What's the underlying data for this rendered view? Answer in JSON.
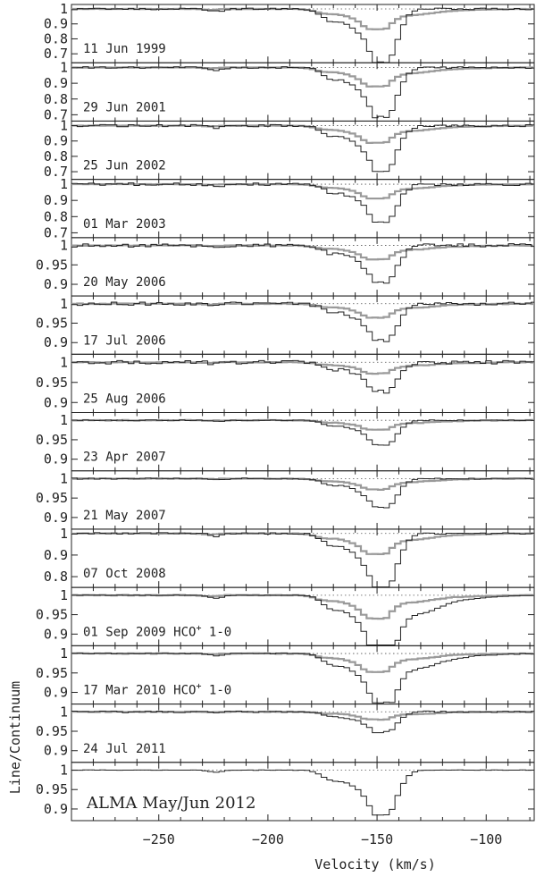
{
  "chart_data": {
    "type": "line",
    "xlabel": "Velocity (km/s)",
    "ylabel": "Line/Continuum",
    "xlim": [
      -290,
      -78
    ],
    "x_ticks": [
      -250,
      -200,
      -150,
      -100
    ],
    "panels": [
      {
        "label": "11 Jun 1999",
        "ylim": [
          0.64,
          1.03
        ],
        "yticks": [
          "1",
          "0.9",
          "0.8",
          "0.7"
        ],
        "ytick_values": [
          1.0,
          0.9,
          0.8,
          0.7
        ],
        "depth": 0.34,
        "noise": 0.004,
        "comparison": true,
        "hco": false
      },
      {
        "label": "29 Jun 2001",
        "ylim": [
          0.66,
          1.03
        ],
        "yticks": [
          "1",
          "0.9",
          "0.8",
          "0.7"
        ],
        "ytick_values": [
          1.0,
          0.9,
          0.8,
          0.7
        ],
        "depth": 0.3,
        "noise": 0.004,
        "comparison": true,
        "hco": false
      },
      {
        "label": "25 Jun 2002",
        "ylim": [
          0.65,
          1.03
        ],
        "yticks": [
          "1",
          "0.9",
          "0.8",
          "0.7"
        ],
        "ytick_values": [
          1.0,
          0.9,
          0.8,
          0.7
        ],
        "depth": 0.28,
        "noise": 0.005,
        "comparison": true,
        "hco": false
      },
      {
        "label": "01 Mar 2003",
        "ylim": [
          0.67,
          1.03
        ],
        "yticks": [
          "1",
          "0.9",
          "0.8",
          "0.7"
        ],
        "ytick_values": [
          1.0,
          0.9,
          0.8,
          0.7
        ],
        "depth": 0.22,
        "noise": 0.006,
        "comparison": true,
        "hco": false
      },
      {
        "label": "20 May 2006",
        "ylim": [
          0.87,
          1.02
        ],
        "yticks": [
          "1",
          "0.95",
          "0.9"
        ],
        "ytick_values": [
          1.0,
          0.95,
          0.9
        ],
        "depth": 0.09,
        "noise": 0.008,
        "comparison": true,
        "hco": false
      },
      {
        "label": "17 Jul 2006",
        "ylim": [
          0.87,
          1.02
        ],
        "yticks": [
          "1",
          "0.95",
          "0.9"
        ],
        "ytick_values": [
          1.0,
          0.95,
          0.9
        ],
        "depth": 0.09,
        "noise": 0.008,
        "comparison": true,
        "hco": false
      },
      {
        "label": "25 Aug 2006",
        "ylim": [
          0.875,
          1.02
        ],
        "yticks": [
          "1",
          "0.95",
          "0.9"
        ],
        "ytick_values": [
          1.0,
          0.95,
          0.9
        ],
        "depth": 0.07,
        "noise": 0.008,
        "comparison": true,
        "hco": false
      },
      {
        "label": "23 Apr 2007",
        "ylim": [
          0.87,
          1.02
        ],
        "yticks": [
          "1",
          "0.95",
          "0.9"
        ],
        "ytick_values": [
          1.0,
          0.95,
          0.9
        ],
        "depth": 0.06,
        "noise": 0.002,
        "comparison": true,
        "hco": false
      },
      {
        "label": "21 May 2007",
        "ylim": [
          0.87,
          1.02
        ],
        "yticks": [
          "1",
          "0.95",
          "0.9"
        ],
        "ytick_values": [
          1.0,
          0.95,
          0.9
        ],
        "depth": 0.07,
        "noise": 0.003,
        "comparison": true,
        "hco": false
      },
      {
        "label": "07 Oct 2008",
        "ylim": [
          0.75,
          1.02
        ],
        "yticks": [
          "1",
          "0.9",
          "0.8"
        ],
        "ytick_values": [
          1.0,
          0.9,
          0.8
        ],
        "depth": 0.24,
        "noise": 0.004,
        "comparison": true,
        "hco": false
      },
      {
        "label": "01 Sep 2009 HCO",
        "label_sup": "+",
        "label_tail": " 1-0",
        "ylim": [
          0.87,
          1.02
        ],
        "yticks": [
          "1",
          "0.95",
          "0.9"
        ],
        "ytick_values": [
          1.0,
          0.95,
          0.9
        ],
        "depth": 0.15,
        "noise": 0.001,
        "comparison": true,
        "hco": true
      },
      {
        "label": "17 Mar 2010 HCO",
        "label_sup": "+",
        "label_tail": " 1-0",
        "ylim": [
          0.87,
          1.02
        ],
        "yticks": [
          "1",
          "0.95",
          "0.9"
        ],
        "ytick_values": [
          1.0,
          0.95,
          0.9
        ],
        "depth": 0.12,
        "noise": 0.002,
        "comparison": true,
        "hco": true
      },
      {
        "label": "24 Jul 2011",
        "ylim": [
          0.87,
          1.02
        ],
        "yticks": [
          "1",
          "0.95",
          "0.9"
        ],
        "ytick_values": [
          1.0,
          0.95,
          0.9
        ],
        "depth": 0.05,
        "noise": 0.004,
        "comparison": true,
        "hco": false
      },
      {
        "label": "ALMA May/Jun 2012",
        "ylim": [
          0.87,
          1.02
        ],
        "yticks": [
          "1",
          "0.95",
          "0.9"
        ],
        "ytick_values": [
          1.0,
          0.95,
          0.9
        ],
        "depth": 0.11,
        "noise": 0.001,
        "comparison": false,
        "hco": false,
        "big_label": true
      }
    ],
    "grid": false,
    "colors": {
      "observed": "#222222",
      "reference": "#9a9a9a",
      "axes": "#222222"
    }
  }
}
